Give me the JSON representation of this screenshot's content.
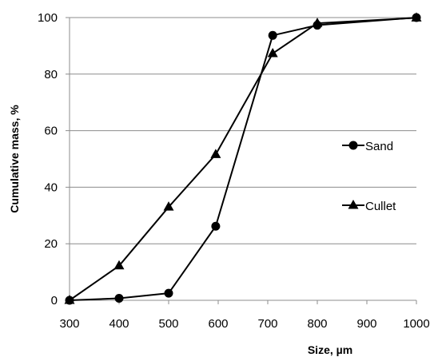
{
  "chart_data": {
    "type": "scatter",
    "xlabel": "Size, µm",
    "ylabel": "Cumulative mass, %",
    "xlim": [
      300,
      1000
    ],
    "ylim": [
      0,
      100
    ],
    "xticks": [
      300,
      400,
      500,
      600,
      700,
      800,
      900,
      1000
    ],
    "yticks": [
      0,
      20,
      40,
      60,
      80,
      100
    ],
    "grid": "horizontal",
    "legend_position": "right",
    "series": [
      {
        "name": "Sand",
        "marker": "circle",
        "x": [
          300,
          400,
          500,
          595,
          710,
          800,
          1000
        ],
        "y": [
          0,
          0.7,
          2.5,
          26.2,
          93.7,
          97.3,
          100
        ],
        "color": "#000000"
      },
      {
        "name": "Cullet",
        "marker": "triangle",
        "x": [
          300,
          400,
          500,
          595,
          710,
          800,
          1000
        ],
        "y": [
          0,
          12.2,
          33.0,
          51.6,
          87.3,
          98.0,
          99.9
        ],
        "color": "#000000"
      }
    ]
  }
}
